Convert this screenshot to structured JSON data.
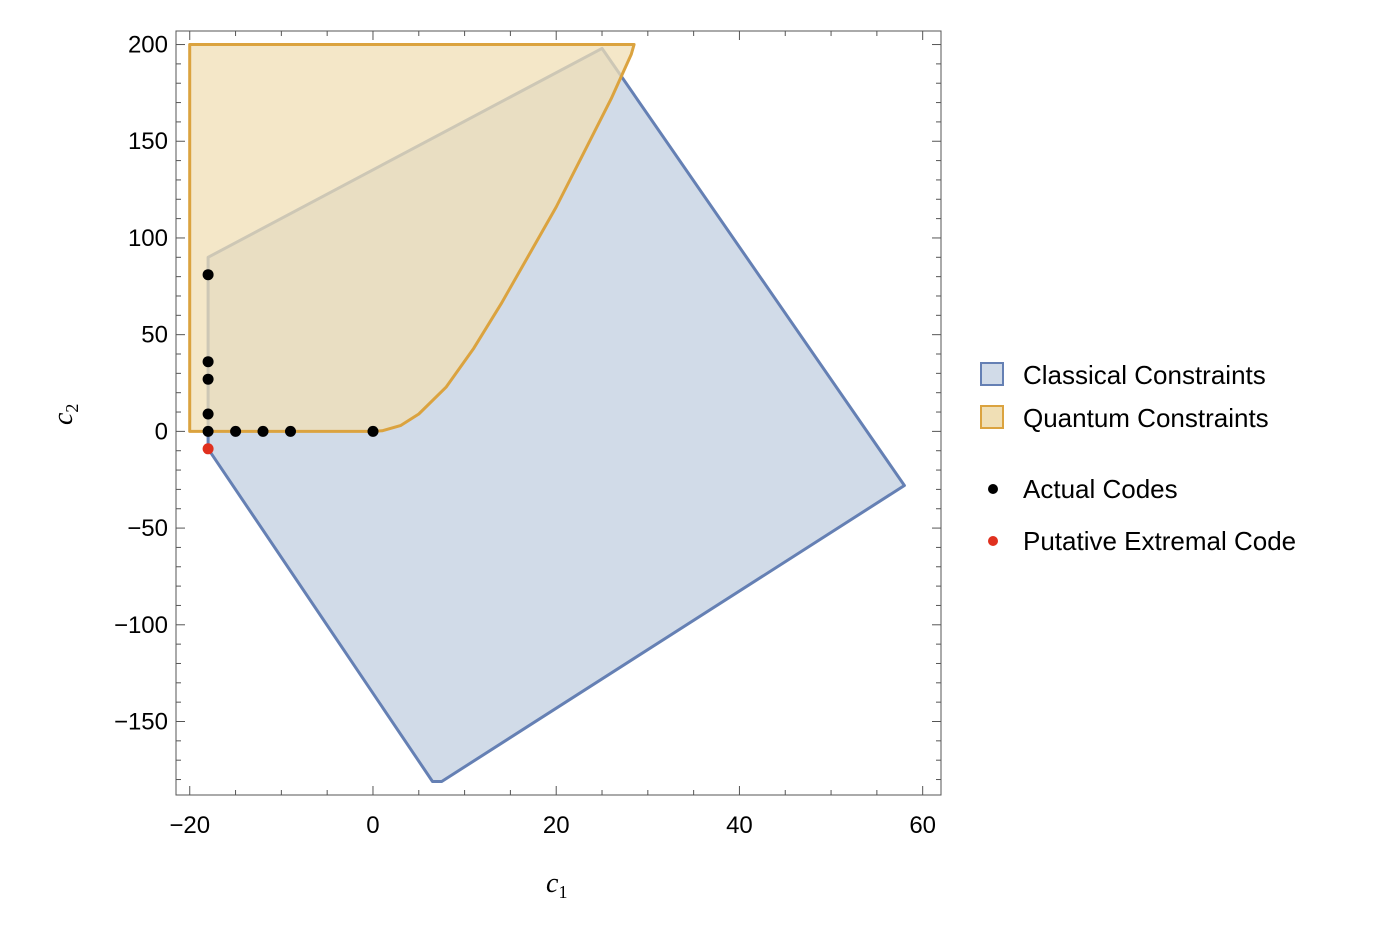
{
  "chart_data": {
    "type": "scatter",
    "xlabel": {
      "main": "c",
      "sub": "1"
    },
    "ylabel": {
      "main": "c",
      "sub": "2"
    },
    "xlim": [
      -21.5,
      62
    ],
    "ylim": [
      -188,
      207
    ],
    "x_ticks": [
      {
        "value": -20,
        "label": "−20"
      },
      {
        "value": 0,
        "label": "0"
      },
      {
        "value": 20,
        "label": "20"
      },
      {
        "value": 40,
        "label": "40"
      },
      {
        "value": 60,
        "label": "60"
      }
    ],
    "y_ticks": [
      {
        "value": 200,
        "label": "200"
      },
      {
        "value": 150,
        "label": "150"
      },
      {
        "value": 100,
        "label": "100"
      },
      {
        "value": 50,
        "label": "50"
      },
      {
        "value": 0,
        "label": "0"
      },
      {
        "value": -50,
        "label": "−50"
      },
      {
        "value": -100,
        "label": "−100"
      },
      {
        "value": -150,
        "label": "−150"
      }
    ],
    "regions": [
      {
        "name": "Classical Constraints",
        "fill": "#d1dbe8",
        "stroke": "#6580b4",
        "vertices": [
          [
            -18,
            90
          ],
          [
            25,
            198
          ],
          [
            58,
            -28
          ],
          [
            7.5,
            -181
          ],
          [
            6.5,
            -181
          ],
          [
            -18,
            -9
          ]
        ]
      },
      {
        "name": "Quantum Constraints",
        "fill": "#f0dfb5",
        "fill_opacity": 0.75,
        "stroke": "#dba33f",
        "vertices": [
          [
            -20,
            200
          ],
          [
            28.5,
            200
          ],
          [
            28.2,
            195
          ],
          [
            26,
            172
          ],
          [
            23,
            144
          ],
          [
            20,
            116
          ],
          [
            17,
            91
          ],
          [
            14,
            66
          ],
          [
            11,
            43
          ],
          [
            8,
            23
          ],
          [
            5,
            9
          ],
          [
            3,
            3
          ],
          [
            1,
            0.3
          ],
          [
            0,
            0
          ],
          [
            -20,
            0
          ]
        ]
      }
    ],
    "series": [
      {
        "name": "Actual Codes",
        "color": "#000000",
        "points": [
          [
            -18,
            81
          ],
          [
            -18,
            36
          ],
          [
            -18,
            27
          ],
          [
            -18,
            9
          ],
          [
            -18,
            0
          ],
          [
            -15,
            0
          ],
          [
            -12,
            0
          ],
          [
            -9,
            0
          ],
          [
            0,
            0
          ]
        ]
      },
      {
        "name": "Putative Extremal Code",
        "color": "#e0301e",
        "points": [
          [
            -18,
            -9
          ]
        ]
      }
    ],
    "legend": {
      "position": "right",
      "entries": [
        {
          "label": "Classical Constraints",
          "kind": "swatch",
          "fill": "#d1dbe8",
          "stroke": "#6580b4"
        },
        {
          "label": "Quantum Constraints",
          "kind": "swatch",
          "fill": "#f0dfb5",
          "stroke": "#dba33f"
        },
        {
          "label": "Actual Codes",
          "kind": "dot",
          "color": "#000000"
        },
        {
          "label": "Putative Extremal Code",
          "kind": "dot",
          "color": "#e0301e"
        }
      ]
    }
  }
}
